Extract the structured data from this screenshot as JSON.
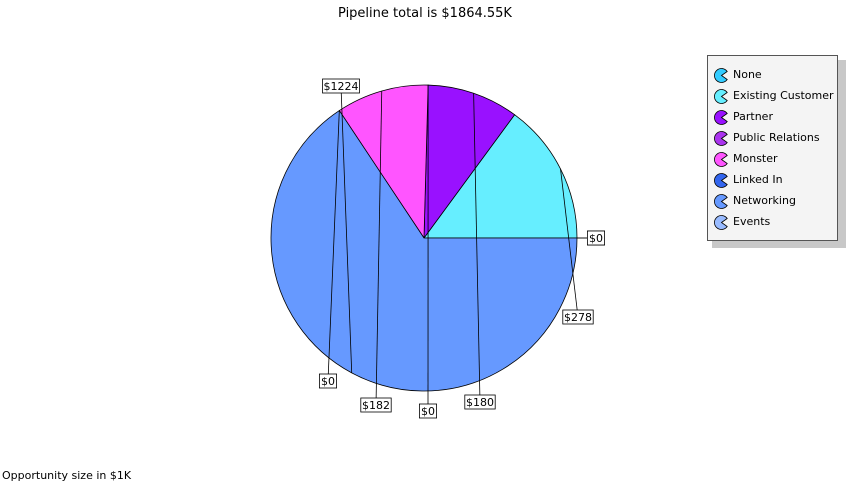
{
  "title": "Pipeline total is $1864.55K",
  "footnote": "Opportunity size in $1K",
  "chart_data": {
    "type": "pie",
    "title": "Pipeline total is $1864.55K",
    "unit": "$1K",
    "slices": [
      {
        "name": "None",
        "value": 0,
        "label": "$0",
        "color": "#33ccff"
      },
      {
        "name": "Existing Customer",
        "value": 278,
        "label": "$278",
        "color": "#66eeff"
      },
      {
        "name": "Partner",
        "value": 180,
        "label": "$180",
        "color": "#9911ff"
      },
      {
        "name": "Public Relations",
        "value": 0,
        "label": "$0",
        "color": "#aa33ee"
      },
      {
        "name": "Monster",
        "value": 182,
        "label": "$182",
        "color": "#ff55ff"
      },
      {
        "name": "Linked In",
        "value": 0,
        "label": "$0",
        "color": "#3366ee"
      },
      {
        "name": "Networking",
        "value": 1224,
        "label": "$1224",
        "color": "#6699ff"
      },
      {
        "name": "Events",
        "value": 0,
        "label": "$0",
        "color": "#99bbff"
      }
    ],
    "legend_position": "top-right"
  }
}
